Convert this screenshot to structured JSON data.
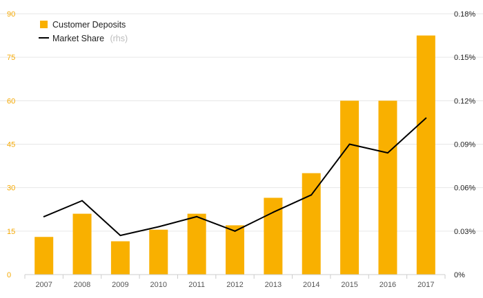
{
  "chart_data": {
    "type": "bar",
    "categories": [
      "2007",
      "2008",
      "2009",
      "2010",
      "2011",
      "2012",
      "2013",
      "2014",
      "2015",
      "2016",
      "2017"
    ],
    "series": [
      {
        "name": "Customer Deposits",
        "type": "bar",
        "axis": "left",
        "color": "#f9b000",
        "values": [
          13,
          21,
          11.5,
          15.5,
          21,
          17,
          26.5,
          35,
          60,
          60,
          82.5
        ]
      },
      {
        "name": "Market Share",
        "type": "line",
        "axis": "right",
        "color": "#000000",
        "values": [
          0.04,
          0.051,
          0.027,
          0.033,
          0.04,
          0.03,
          0.043,
          0.055,
          0.09,
          0.084,
          0.108
        ]
      }
    ],
    "legend_note": "(rhs)",
    "ylim_left": [
      0,
      90
    ],
    "yticks_left": [
      "0",
      "15",
      "30",
      "45",
      "60",
      "75",
      "90"
    ],
    "ylim_right": [
      0,
      0.18
    ],
    "yticks_right": [
      "0%",
      "0.03%",
      "0.06%",
      "0.09%",
      "0.12%",
      "0.15%",
      "0.18%"
    ],
    "grid": true,
    "legend_position": "top-left"
  }
}
